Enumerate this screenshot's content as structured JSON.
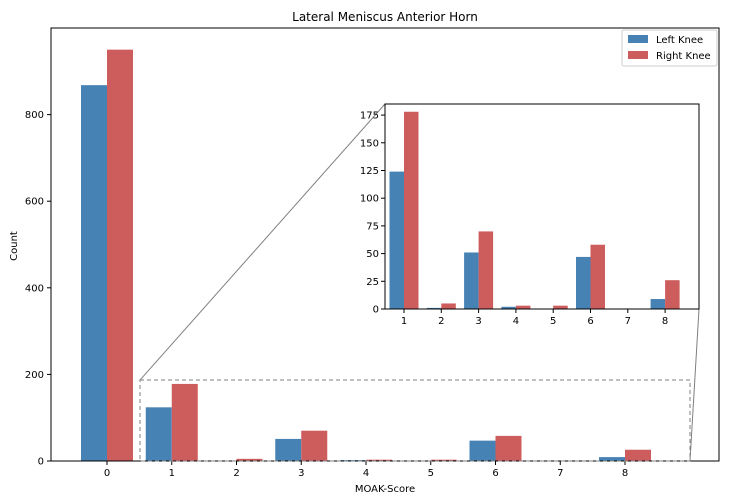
{
  "chart_data": {
    "type": "bar",
    "title": "Lateral Meniscus Anterior Horn",
    "xlabel": "MOAK-Score",
    "ylabel": "Count",
    "categories": [
      0,
      1,
      2,
      3,
      4,
      5,
      6,
      7,
      8
    ],
    "series": [
      {
        "name": "Left Knee",
        "color": "#4682b4",
        "values": [
          868,
          124,
          1,
          51,
          2,
          0,
          47,
          0,
          9
        ]
      },
      {
        "name": "Right Knee",
        "color": "#cd5c5c",
        "values": [
          950,
          178,
          5,
          70,
          3,
          3,
          58,
          0,
          26
        ]
      }
    ],
    "ylim": [
      0,
      1000
    ],
    "yticks": [
      0,
      200,
      400,
      600,
      800
    ],
    "legend": "top-right",
    "grid": false,
    "inset": {
      "categories": [
        1,
        2,
        3,
        4,
        5,
        6,
        7,
        8
      ],
      "ylim": [
        0,
        185
      ],
      "yticks": [
        0,
        25,
        50,
        75,
        100,
        125,
        150,
        175
      ],
      "zoom_box_ylim": [
        0,
        187
      ]
    }
  }
}
